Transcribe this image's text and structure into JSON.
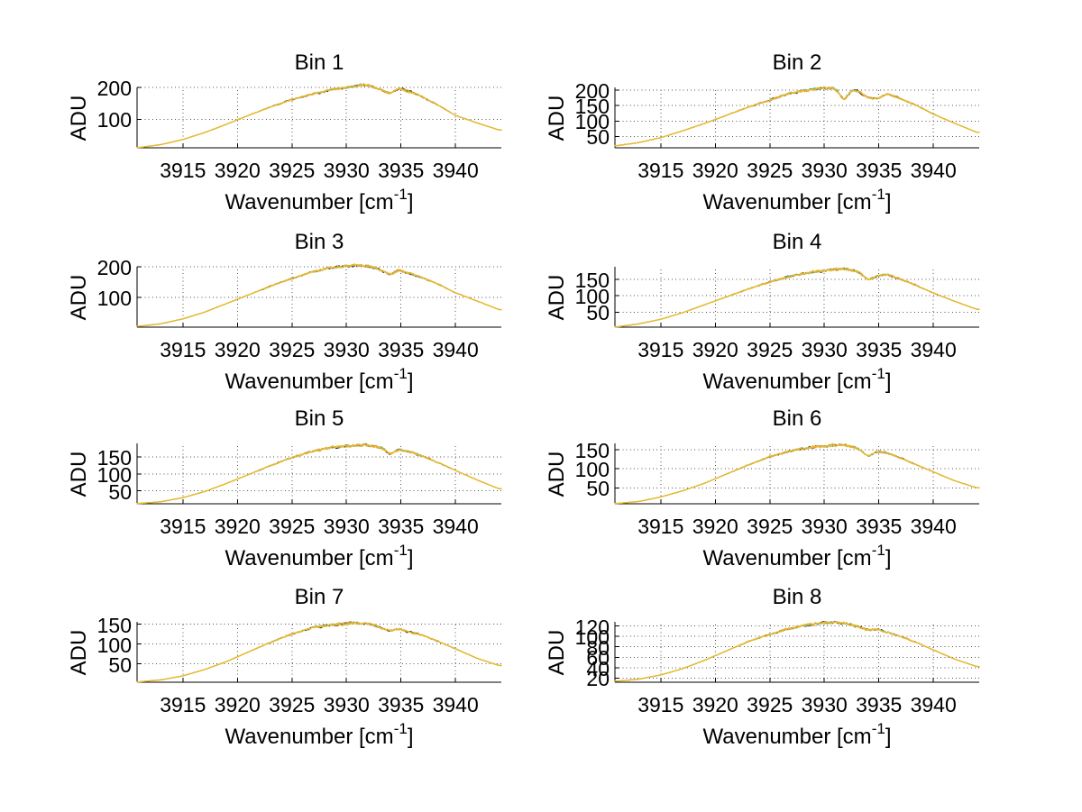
{
  "figure": {
    "background": "#ffffff",
    "text_color": "#000000",
    "axis_color": "#000000",
    "grid_color": "#555555",
    "grid_style": "dotted",
    "ylabel": "ADU",
    "xlabel": {
      "prefix": "Wavenumber [cm",
      "sup": "-1",
      "suffix": "]"
    },
    "xticks": [
      3915,
      3920,
      3925,
      3930,
      3935,
      3940
    ],
    "xlim": [
      3910.8,
      3944.2
    ],
    "layout_grid": "4 rows x 2 columns",
    "series_colors": [
      "#2e2414",
      "#3fae96",
      "#ef9a2e",
      "#e9ba2b"
    ]
  },
  "chart_data": [
    {
      "type": "line",
      "title": "Bin 1",
      "xlabel": "Wavenumber [cm^-1]",
      "ylabel": "ADU",
      "xlim": [
        3910.8,
        3944.2
      ],
      "ylim": [
        10,
        200
      ],
      "grid": "dotted",
      "xticks": [
        3915,
        3920,
        3925,
        3930,
        3935,
        3940
      ],
      "yticks": [
        100,
        200
      ],
      "x": [
        3911,
        3913,
        3915,
        3917,
        3919,
        3921,
        3923,
        3925,
        3927,
        3928.5,
        3930,
        3931,
        3931.8,
        3932.5,
        3933.2,
        3934,
        3934.8,
        3935.8,
        3937,
        3938.5,
        3940,
        3942,
        3944
      ],
      "adu": [
        11,
        20,
        36,
        58,
        84,
        112,
        138,
        162,
        180,
        192,
        200,
        206,
        208,
        201,
        193,
        181,
        197,
        187,
        170,
        142,
        112,
        88,
        66
      ]
    },
    {
      "type": "line",
      "title": "Bin 2",
      "xlabel": "Wavenumber [cm^-1]",
      "ylabel": "ADU",
      "xlim": [
        3910.8,
        3944.2
      ],
      "ylim": [
        13,
        209
      ],
      "grid": "dotted",
      "xticks": [
        3915,
        3920,
        3925,
        3930,
        3935,
        3940
      ],
      "yticks": [
        50,
        100,
        150,
        200
      ],
      "x": [
        3911,
        3913,
        3915,
        3917,
        3919,
        3921,
        3923,
        3925,
        3927,
        3928.5,
        3930,
        3931,
        3931.8,
        3932.5,
        3933.2,
        3934,
        3934.8,
        3935.8,
        3937,
        3938.5,
        3940,
        3942,
        3944
      ],
      "adu": [
        20,
        30,
        46,
        68,
        92,
        118,
        145,
        168,
        192,
        200,
        207,
        205,
        168,
        200,
        196,
        176,
        172,
        188,
        172,
        150,
        122,
        92,
        63
      ]
    },
    {
      "type": "line",
      "title": "Bin 3",
      "xlabel": "Wavenumber [cm^-1]",
      "ylabel": "ADU",
      "xlim": [
        3910.8,
        3944.2
      ],
      "ylim": [
        3,
        200
      ],
      "grid": "dotted",
      "xticks": [
        3915,
        3920,
        3925,
        3930,
        3935,
        3940
      ],
      "yticks": [
        100,
        200
      ],
      "x": [
        3911,
        3913,
        3915,
        3917,
        3919,
        3921,
        3923,
        3925,
        3927,
        3928.5,
        3930,
        3931,
        3931.8,
        3932.5,
        3933.2,
        3934,
        3934.8,
        3935.8,
        3937,
        3938.5,
        3940,
        3942,
        3944
      ],
      "adu": [
        6,
        14,
        30,
        52,
        80,
        108,
        136,
        162,
        184,
        196,
        202,
        206,
        204,
        198,
        188,
        174,
        190,
        178,
        164,
        142,
        115,
        88,
        60
      ]
    },
    {
      "type": "line",
      "title": "Bin 4",
      "xlabel": "Wavenumber [cm^-1]",
      "ylabel": "ADU",
      "xlim": [
        3910.8,
        3944.2
      ],
      "ylim": [
        4,
        188
      ],
      "grid": "dotted",
      "xticks": [
        3915,
        3920,
        3925,
        3930,
        3935,
        3940
      ],
      "yticks": [
        50,
        100,
        150
      ],
      "x": [
        3911,
        3913,
        3915,
        3917,
        3919,
        3921,
        3923,
        3925,
        3927,
        3928.5,
        3930,
        3931,
        3931.8,
        3932.5,
        3933.2,
        3934,
        3934.8,
        3935.8,
        3937,
        3938.5,
        3940,
        3942,
        3944
      ],
      "adu": [
        5,
        14,
        28,
        48,
        72,
        96,
        120,
        142,
        160,
        170,
        176,
        180,
        182,
        178,
        172,
        148,
        160,
        164,
        150,
        130,
        108,
        82,
        58
      ]
    },
    {
      "type": "line",
      "title": "Bin 5",
      "xlabel": "Wavenumber [cm^-1]",
      "ylabel": "ADU",
      "xlim": [
        3910.8,
        3944.2
      ],
      "ylim": [
        12,
        190
      ],
      "grid": "dotted",
      "xticks": [
        3915,
        3920,
        3925,
        3930,
        3935,
        3940
      ],
      "yticks": [
        50,
        100,
        150
      ],
      "x": [
        3911,
        3913,
        3915,
        3917,
        3919,
        3921,
        3923,
        3925,
        3927,
        3928.5,
        3930,
        3931,
        3931.8,
        3932.5,
        3933.2,
        3934,
        3934.8,
        3935.8,
        3937,
        3938.5,
        3940,
        3942,
        3944
      ],
      "adu": [
        13,
        18,
        30,
        48,
        72,
        98,
        124,
        148,
        168,
        178,
        182,
        184,
        185,
        182,
        178,
        158,
        172,
        166,
        152,
        132,
        110,
        82,
        56
      ]
    },
    {
      "type": "line",
      "title": "Bin 6",
      "xlabel": "Wavenumber [cm^-1]",
      "ylabel": "ADU",
      "xlim": [
        3910.8,
        3944.2
      ],
      "ylim": [
        8,
        167
      ],
      "grid": "dotted",
      "xticks": [
        3915,
        3920,
        3925,
        3930,
        3935,
        3940
      ],
      "yticks": [
        50,
        100,
        150
      ],
      "x": [
        3911,
        3913,
        3915,
        3917,
        3919,
        3921,
        3923,
        3925,
        3927,
        3928.5,
        3930,
        3931,
        3931.8,
        3932.5,
        3933.2,
        3934,
        3934.8,
        3935.8,
        3937,
        3938.5,
        3940,
        3942,
        3944
      ],
      "adu": [
        9,
        14,
        26,
        42,
        62,
        86,
        110,
        132,
        148,
        156,
        160,
        162,
        163,
        158,
        152,
        132,
        146,
        142,
        128,
        110,
        92,
        68,
        50
      ]
    },
    {
      "type": "line",
      "title": "Bin 7",
      "xlabel": "Wavenumber [cm^-1]",
      "ylabel": "ADU",
      "xlim": [
        3910.8,
        3944.2
      ],
      "ylim": [
        4,
        156
      ],
      "grid": "dotted",
      "xticks": [
        3915,
        3920,
        3925,
        3930,
        3935,
        3940
      ],
      "yticks": [
        50,
        100,
        150
      ],
      "x": [
        3911,
        3913,
        3915,
        3917,
        3919,
        3921,
        3923,
        3925,
        3927,
        3928.5,
        3930,
        3931,
        3931.8,
        3932.5,
        3933.2,
        3934,
        3934.8,
        3935.8,
        3937,
        3938.5,
        3940,
        3942,
        3944
      ],
      "adu": [
        5,
        10,
        20,
        36,
        56,
        80,
        104,
        126,
        142,
        148,
        152,
        153,
        152,
        148,
        140,
        134,
        138,
        130,
        122,
        106,
        88,
        64,
        46
      ]
    },
    {
      "type": "line",
      "title": "Bin 8",
      "xlabel": "Wavenumber [cm^-1]",
      "ylabel": "ADU",
      "xlim": [
        3910.8,
        3944.2
      ],
      "ylim": [
        12,
        128
      ],
      "grid": "dotted",
      "xticks": [
        3915,
        3920,
        3925,
        3930,
        3935,
        3940
      ],
      "yticks": [
        20,
        40,
        60,
        80,
        100,
        120
      ],
      "x": [
        3911,
        3913,
        3915,
        3917,
        3919,
        3921,
        3923,
        3925,
        3927,
        3928.5,
        3930,
        3931,
        3931.8,
        3932.5,
        3933.2,
        3934,
        3934.8,
        3935.8,
        3937,
        3938.5,
        3940,
        3942,
        3944
      ],
      "adu": [
        14,
        18,
        26,
        38,
        54,
        72,
        90,
        104,
        116,
        122,
        126,
        127,
        126,
        122,
        118,
        112,
        114,
        108,
        100,
        88,
        74,
        56,
        42
      ]
    }
  ]
}
